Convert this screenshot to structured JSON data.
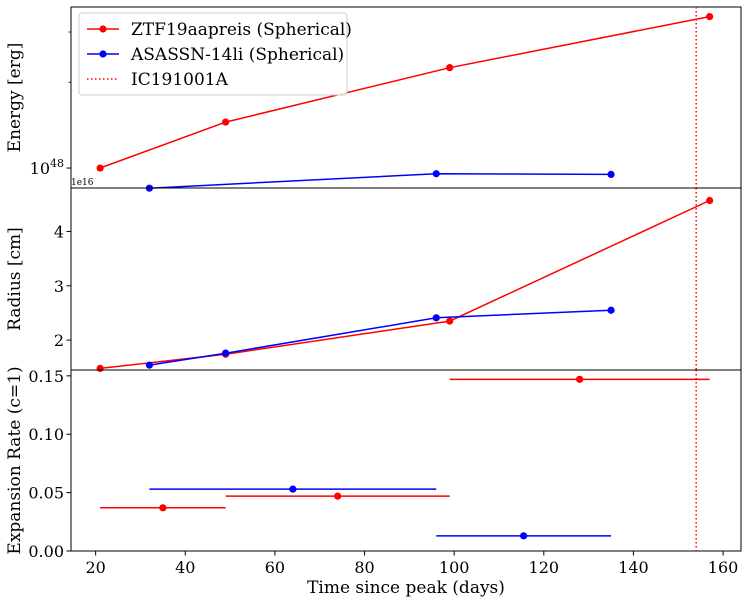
{
  "chart_data": [
    {
      "type": "line",
      "panel": "energy",
      "ylabel": "Energy [erg]",
      "yscale": "log",
      "yticks": [
        {
          "value": 1e+48,
          "base": "10",
          "exp": "48"
        }
      ],
      "series": [
        {
          "name": "ZTF19aapreis (Spherical)",
          "color": "#ff0000",
          "x": [
            21,
            49,
            99,
            157
          ],
          "y": [
            1e+48,
            1.45e+48,
            2.25e+48,
            3.4e+48
          ]
        },
        {
          "name": "ASASSN-14li (Spherical)",
          "color": "#0000ff",
          "x": [
            32,
            96,
            135
          ],
          "y": [
            8.5e+47,
            9.55e+47,
            9.5e+47
          ]
        }
      ],
      "vline": {
        "name": "IC191001A",
        "x": 154,
        "color": "#ff0000",
        "style": "dotted"
      }
    },
    {
      "type": "line",
      "panel": "radius",
      "ylabel": "Radius [cm]",
      "offset_text": "1e16",
      "ylim": [
        1.45,
        4.8
      ],
      "yticks": [
        2,
        3,
        4
      ],
      "series": [
        {
          "name": "ZTF19aapreis (Spherical)",
          "color": "#ff0000",
          "x": [
            21,
            49,
            99,
            157
          ],
          "y": [
            1.48,
            1.74,
            2.35,
            4.57
          ]
        },
        {
          "name": "ASASSN-14li (Spherical)",
          "color": "#0000ff",
          "x": [
            32,
            49,
            96,
            135
          ],
          "y": [
            1.54,
            1.76,
            2.41,
            2.55
          ]
        }
      ],
      "vline": {
        "x": 154,
        "color": "#ff0000",
        "style": "dotted"
      }
    },
    {
      "type": "scatter",
      "panel": "expansion",
      "ylabel": "Expansion Rate (c=1)",
      "xlabel": "Time since peak (days)",
      "xlim": [
        14.5,
        164
      ],
      "ylim": [
        0,
        0.155
      ],
      "xticks": [
        20,
        40,
        60,
        80,
        100,
        120,
        140,
        160
      ],
      "yticks": [
        0.0,
        0.05,
        0.1,
        0.15
      ],
      "ytick_labels": [
        "0.00",
        "0.05",
        "0.10",
        "0.15"
      ],
      "series": [
        {
          "name": "ZTF19aapreis (Spherical)",
          "color": "#ff0000",
          "points": [
            {
              "x": 35,
              "xmin": 21,
              "xmax": 49,
              "y": 0.037
            },
            {
              "x": 74,
              "xmin": 49,
              "xmax": 99,
              "y": 0.047
            },
            {
              "x": 128,
              "xmin": 99,
              "xmax": 157,
              "y": 0.147
            }
          ]
        },
        {
          "name": "ASASSN-14li (Spherical)",
          "color": "#0000ff",
          "points": [
            {
              "x": 64,
              "xmin": 32,
              "xmax": 96,
              "y": 0.053
            },
            {
              "x": 115.5,
              "xmin": 96,
              "xmax": 135,
              "y": 0.013
            }
          ]
        }
      ],
      "vline": {
        "x": 154,
        "color": "#ff0000",
        "style": "dotted"
      }
    }
  ],
  "legend": {
    "placement": "upper-left",
    "entries": [
      {
        "label": "ZTF19aapreis (Spherical)",
        "color": "#ff0000",
        "style": "line-marker"
      },
      {
        "label": "ASASSN-14li (Spherical)",
        "color": "#0000ff",
        "style": "line-marker"
      },
      {
        "label": "IC191001A",
        "color": "#ff0000",
        "style": "dotted"
      }
    ]
  }
}
